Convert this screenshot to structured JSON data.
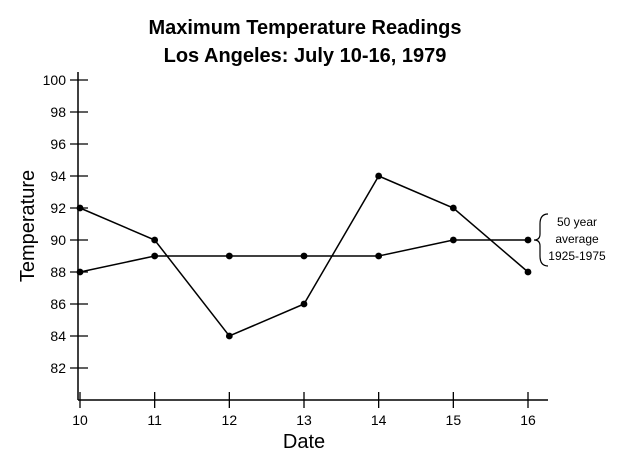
{
  "chart_data": {
    "type": "line",
    "title": "Maximum Temperature Readings",
    "subtitle": "Los Angeles: July 10-16, 1979",
    "xlabel": "Date",
    "ylabel": "Temperature",
    "x": [
      10,
      11,
      12,
      13,
      14,
      15,
      16
    ],
    "series": [
      {
        "values": [
          92,
          90,
          84,
          86,
          94,
          92,
          88
        ]
      },
      {
        "values": [
          88,
          89,
          89,
          89,
          89,
          90,
          90
        ]
      }
    ],
    "xlim": [
      10,
      16
    ],
    "ylim": [
      80,
      100
    ],
    "yticks": [
      82,
      84,
      86,
      88,
      90,
      92,
      94,
      96,
      98,
      100
    ],
    "grid": false,
    "annotation": {
      "lines": [
        "50 year",
        "average",
        "1925-1975"
      ]
    }
  }
}
